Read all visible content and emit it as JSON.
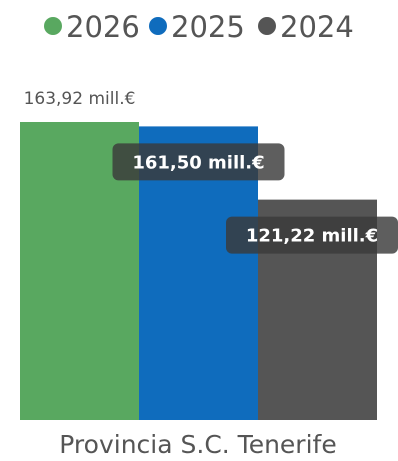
{
  "chart_data": {
    "type": "bar",
    "categories": [
      "Provincia S.C. Tenerife"
    ],
    "series": [
      {
        "name": "2026",
        "values": [
          163.92
        ],
        "color": "#59a860",
        "label": "163,92 mill.€",
        "label_style": "outside"
      },
      {
        "name": "2025",
        "values": [
          161.5
        ],
        "color": "#0f6cbd",
        "label": "161,50 mill.€",
        "label_style": "inside"
      },
      {
        "name": "2024",
        "values": [
          121.22
        ],
        "color": "#555555",
        "label": "121,22 mill.€",
        "label_style": "inside"
      }
    ],
    "legend_placement": "top-left",
    "grid": false,
    "ylim": [
      0,
      163.92
    ]
  }
}
